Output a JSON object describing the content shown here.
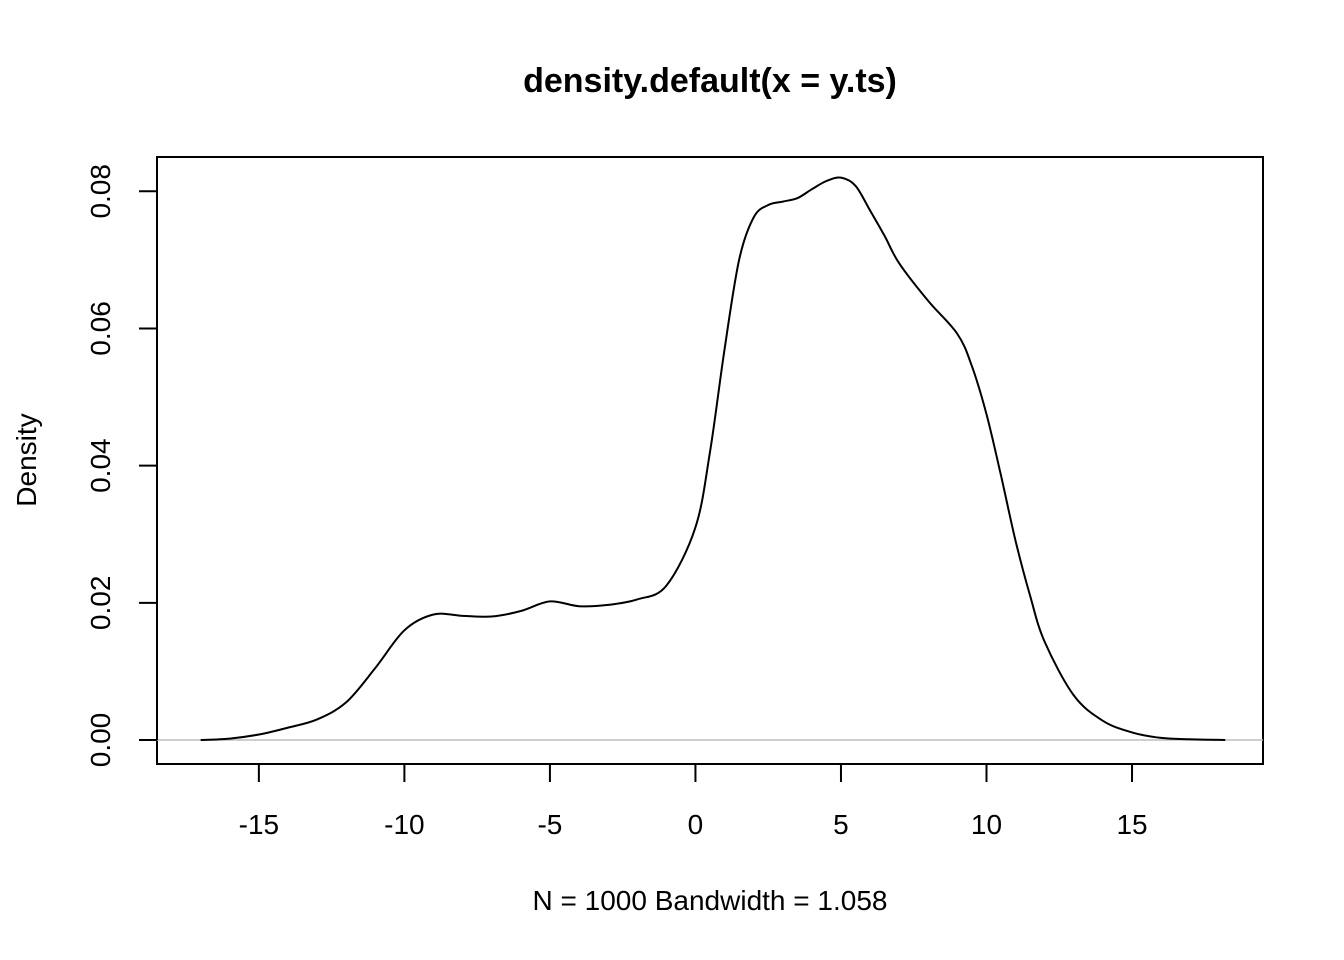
{
  "chart_data": {
    "type": "line",
    "title": "density.default(x = y.ts)",
    "xlabel": "N = 1000   Bandwidth = 1.058",
    "ylabel": "Density",
    "xlim": [
      -18.5,
      19.5
    ],
    "ylim": [
      -0.0035,
      0.085
    ],
    "xticks": [
      -15,
      -10,
      -5,
      0,
      5,
      10,
      15
    ],
    "xtick_labels": [
      "-15",
      "-10",
      "-5",
      "0",
      "5",
      "10",
      "15"
    ],
    "yticks": [
      0,
      0.02,
      0.04,
      0.06,
      0.08
    ],
    "ytick_labels": [
      "0.00",
      "0.02",
      "0.04",
      "0.06",
      "0.08"
    ],
    "grid": false,
    "zero_line": true,
    "series": [
      {
        "x": [
          -17,
          -16,
          -15,
          -14,
          -13,
          -12,
          -11,
          -10,
          -9,
          -8,
          -7,
          -6,
          -5,
          -4,
          -3,
          -2,
          -1,
          0,
          0.5,
          1,
          1.5,
          2,
          2.5,
          3,
          3.5,
          4,
          4.5,
          5,
          5.5,
          6,
          6.5,
          7,
          8,
          9,
          9.5,
          10,
          10.5,
          11,
          11.5,
          12,
          13,
          14,
          15,
          16,
          17,
          18.2
        ],
        "y": [
          0.0,
          0.0002,
          0.0008,
          0.0018,
          0.003,
          0.0055,
          0.0105,
          0.016,
          0.0183,
          0.0181,
          0.018,
          0.0188,
          0.0202,
          0.0195,
          0.0197,
          0.0205,
          0.0225,
          0.031,
          0.042,
          0.057,
          0.07,
          0.0762,
          0.078,
          0.0785,
          0.079,
          0.0803,
          0.0815,
          0.082,
          0.0808,
          0.0772,
          0.0735,
          0.0695,
          0.064,
          0.0592,
          0.0545,
          0.0475,
          0.0385,
          0.029,
          0.021,
          0.0143,
          0.0065,
          0.0028,
          0.0011,
          0.0003,
          0.0001,
          0.0
        ]
      }
    ]
  }
}
